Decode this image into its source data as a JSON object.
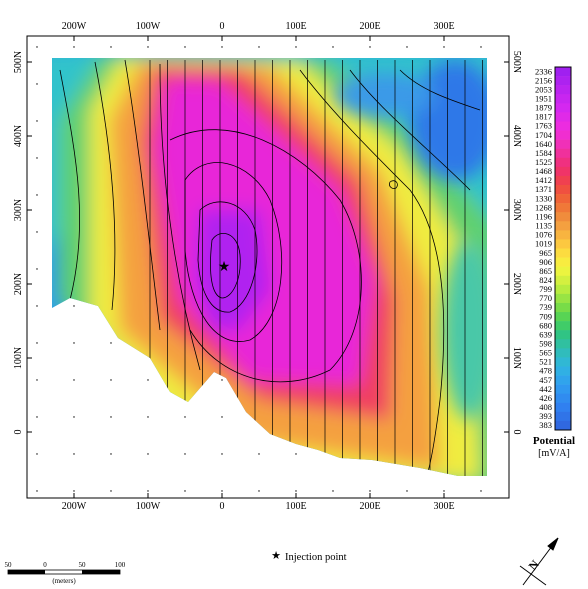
{
  "map": {
    "x_ticks_bottom": [
      "200W",
      "100W",
      "0",
      "100E",
      "200E",
      "300E"
    ],
    "x_ticks_top": [
      "200W",
      "100W",
      "0",
      "100E",
      "200E",
      "300E"
    ],
    "y_ticks_left": [
      "500N",
      "400N",
      "300N",
      "200N",
      "100N",
      "0"
    ],
    "y_ticks_right": [
      "500N",
      "400N",
      "300N",
      "200N",
      "100N",
      "0"
    ],
    "injection_point_label": "Injection point",
    "injection_marker": "★"
  },
  "legend": {
    "title": "Potential",
    "unit": "[mV/A]",
    "values": [
      "2336",
      "2156",
      "2053",
      "1951",
      "1879",
      "1817",
      "1763",
      "1704",
      "1640",
      "1584",
      "1525",
      "1468",
      "1412",
      "1371",
      "1330",
      "1268",
      "1196",
      "1135",
      "1076",
      "1019",
      "965",
      "906",
      "865",
      "824",
      "799",
      "770",
      "739",
      "709",
      "680",
      "639",
      "598",
      "565",
      "521",
      "478",
      "457",
      "442",
      "426",
      "408",
      "393",
      "383"
    ],
    "colors": [
      "#a020f0",
      "#ad22f0",
      "#bb24f0",
      "#c826f0",
      "#d428f0",
      "#e02ae8",
      "#ec2ce0",
      "#f02ed0",
      "#f030b8",
      "#f0309c",
      "#f03080",
      "#f03468",
      "#f04050",
      "#f05040",
      "#f06438",
      "#f07838",
      "#f08c3c",
      "#f4a040",
      "#f8b440",
      "#fcc840",
      "#fcdc40",
      "#f8ec40",
      "#ecf440",
      "#d4f040",
      "#b8ec40",
      "#98e444",
      "#78dc48",
      "#58d454",
      "#40cc68",
      "#30c484",
      "#30c0a0",
      "#30bcbc",
      "#30b8d4",
      "#30b0e4",
      "#30a4ec",
      "#3098f0",
      "#308cf0",
      "#3080f0",
      "#3074e8",
      "#3068e0"
    ]
  },
  "scale_bar": {
    "labels": [
      "50",
      "0",
      "50",
      "100"
    ],
    "unit": "(meters)"
  },
  "north_arrow": {
    "label": "N"
  },
  "colors": {
    "high": "#e020e0",
    "mid": "#f0d040",
    "low": "#3070e8",
    "contour": "#000000"
  }
}
